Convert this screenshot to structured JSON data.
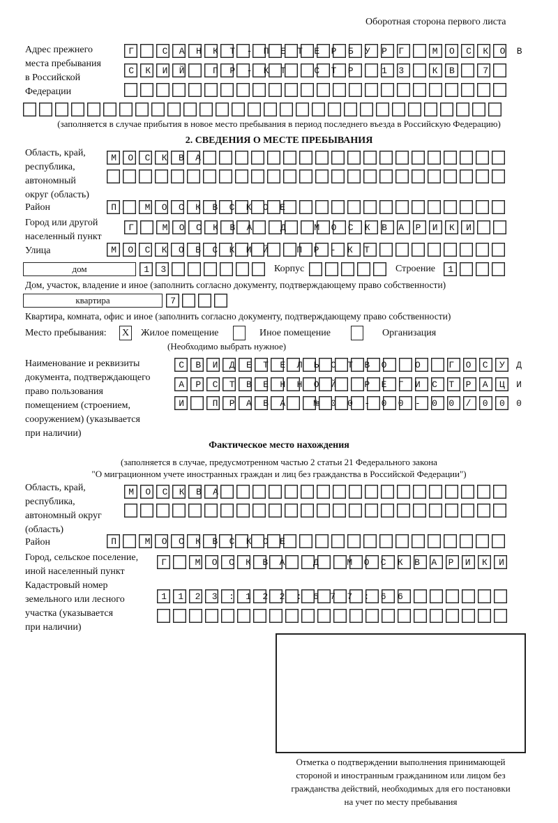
{
  "page_header": "Оборотная сторона первого листа",
  "previous_address": {
    "label": "Адрес прежнего\nместа пребывания\nв Российской\nФедерации",
    "rows": [
      "Г САНКТ-ПЕТЕРБУРГ МОСКОВ",
      "СКИЙ ПР-КТ СТР 13 КВ 7",
      "",
      ""
    ],
    "note": "(заполняется в случае прибытия в новое место пребывания в период последнего въезда в Российскую Федерацию)"
  },
  "section2": {
    "title": "2. СВЕДЕНИЯ О МЕСТЕ ПРЕБЫВАНИЯ",
    "region_label": "Область, край,\nреспублика,\nавтономный\nокруг (область)",
    "region_rows": [
      "МОСКВА",
      ""
    ],
    "district_label": "Район",
    "district": "П МОСКВСКОЕ",
    "city_label": "Город или другой\nнаселенный пункт",
    "city": "Г МОСКВА Д МОСКВАРИКИ",
    "street_label": "Улица",
    "street": "МОСКОВСКИЙ ПР-КТ",
    "house_type": "дом",
    "house_number": "13",
    "korpus_label": "Корпус",
    "korpus": "",
    "building_label": "Строение",
    "building": "1",
    "house_note": "Дом, участок, владение и иное (заполнить согласно документу, подтверждающему право собственности)",
    "flat_type": "квартира",
    "flat_number": "7",
    "flat_note": "Квартира, комната, офис и иное (заполнить согласно документу, подтверждающему право собственности)",
    "stay_place_label": "Место пребывания:",
    "stay_options": [
      {
        "label": "Жилое помещение",
        "mark": "Х",
        "checked": true
      },
      {
        "label": "Иное помещение",
        "mark": "",
        "checked": false
      },
      {
        "label": "Организация",
        "mark": "",
        "checked": false
      }
    ],
    "stay_note": "(Необходимо выбрать нужное)",
    "document_label": "Наименование и реквизиты\nдокумента, подтверждающего\nправо пользования\nпомещением (строением,\nсооружением) (указывается\nпри наличии)",
    "document_rows": [
      "СВИДЕТЕЛЬСТВО О ГОСУД",
      "АРСТВЕННОЙ РЕГИСТРАЦИ",
      "И ПРАВА №00-00-00/000"
    ]
  },
  "actual_place": {
    "title": "Фактическое место нахождения",
    "note_line1": "(заполняется в случае, предусмотренном частью 2 статьи 21 Федерального закона",
    "note_line2": "\"О миграционном учете иностранных граждан и лиц без гражданства в Российской Федерации\")",
    "region_label": "Область, край,\nреспублика,\nавтономный округ\n(область)",
    "region_rows": [
      "МОСКВА",
      ""
    ],
    "district_label": "Район",
    "district": "П МОСКВСКОЕ",
    "city_label": "Город, сельское поселение,\nиной населенный пункт",
    "city": "Г МОСКВА Д МОСКВАРИКИ",
    "cadastral_label": "Кадастровый номер\nземельного или лесного\nучастка (указывается\nпри наличии)",
    "cadastral_rows": [
      "1123:122:677:66",
      ""
    ]
  },
  "confirmation_caption": "Отметка о подтверждении выполнения принимающей\nстороной и иностранным гражданином или лицом без\nгражданства действий, необходимых для его постановки\nна учет по месту пребывания"
}
